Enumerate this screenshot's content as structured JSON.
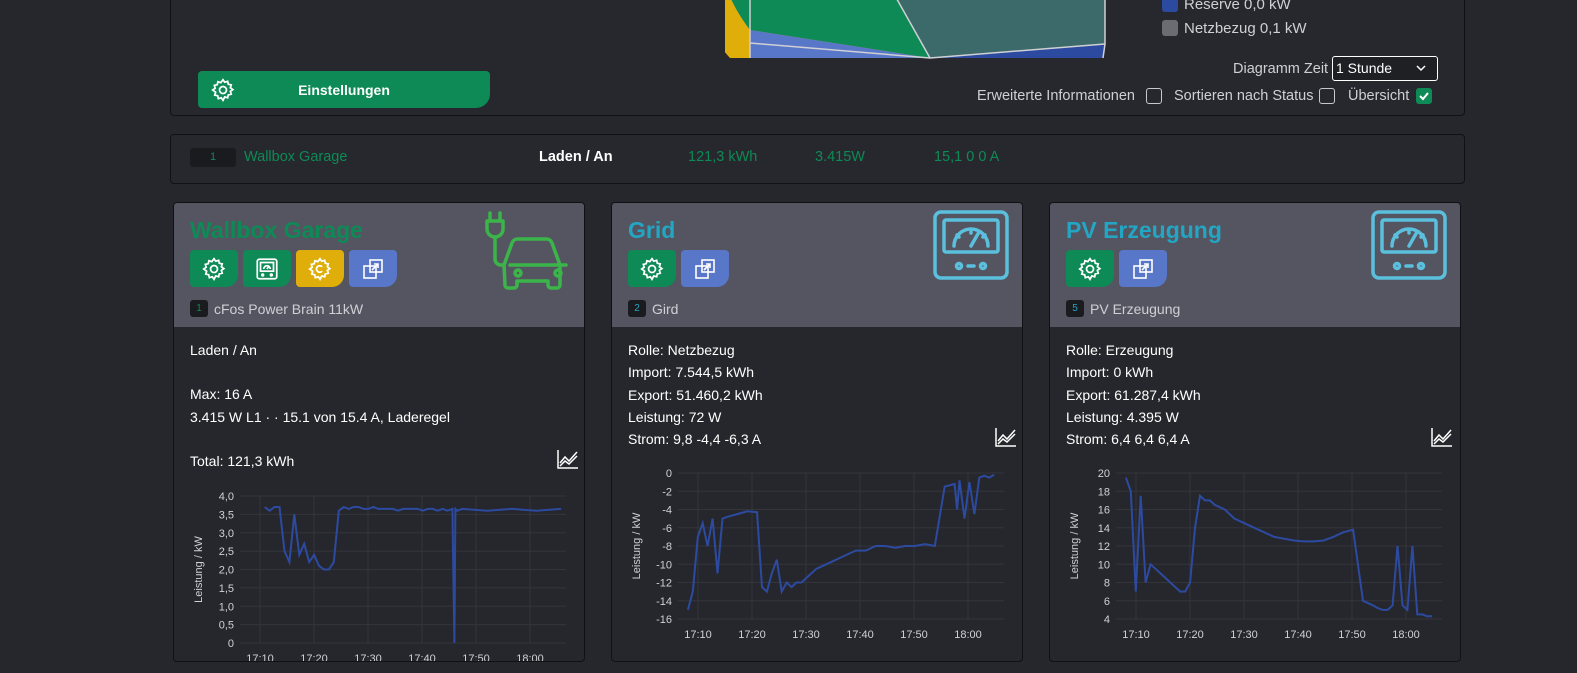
{
  "top": {
    "settings_label": "Einstellungen",
    "legend": [
      {
        "label": "Reserve 0,0 kW",
        "color": "#2c4aa0"
      },
      {
        "label": "Netzbezug 0,1 kW",
        "color": "#6b6c72"
      }
    ],
    "diagram_time_label": "Diagramm Zeit",
    "diagram_time_value": "1 Stunde",
    "extended_info_label": "Erweiterte Informationen",
    "sort_label": "Sortieren nach Status",
    "overview_label": "Übersicht",
    "extended_info_checked": false,
    "sort_checked": false,
    "overview_checked": true
  },
  "summary": {
    "index": "1",
    "name": "Wallbox Garage",
    "status": "Laden / An",
    "energy": "121,3 kWh",
    "power": "3.415W",
    "current": "15,1 0 0 A"
  },
  "cards": [
    {
      "title": "Wallbox Garage",
      "title_color": "#0d8a55",
      "device_index": "1",
      "device_name": "cFos Power Brain 11kW",
      "lines": [
        "Laden / An",
        "",
        "Max: 16 A",
        "3.415 W L1 · · 15.1 von 15.4 A, Laderegel",
        "",
        "Total: 121,3 kWh"
      ]
    },
    {
      "title": "Grid",
      "title_color": "#23a6c4",
      "device_index": "2",
      "device_name": "Gird",
      "lines": [
        "Rolle: Netzbezug",
        "Import: 7.544,5 kWh",
        "Export: 51.460,2 kWh",
        "Leistung: 72 W",
        "Strom: 9,8 -4,4 -6,3 A"
      ]
    },
    {
      "title": "PV Erzeugung",
      "title_color": "#23a6c4",
      "device_index": "5",
      "device_name": "PV Erzeugung",
      "lines": [
        "Rolle: Erzeugung",
        "Import: 0 kWh",
        "Export: 61.287,4 kWh",
        "Leistung: 4.395 W",
        "Strom: 6,4 6,4 6,4 A"
      ]
    }
  ],
  "chart_data": [
    {
      "type": "line",
      "ylabel": "Leistung / kW",
      "ylim": [
        0,
        4
      ],
      "yticks": [
        "4,0",
        "3,5",
        "3,0",
        "2,5",
        "2,0",
        "1,5",
        "1,0",
        "0,5",
        "0"
      ],
      "xticks": [
        "17:10",
        "17:20",
        "17:30",
        "17:40",
        "17:50",
        "18:00"
      ],
      "color": "#2c4aa0",
      "x": [
        5,
        6,
        7,
        8,
        9,
        10,
        11,
        12,
        13,
        14,
        15,
        16,
        17,
        18,
        19,
        20,
        21,
        22,
        23,
        24,
        25,
        26,
        27,
        28,
        29,
        30,
        31,
        32,
        33,
        34,
        35,
        36,
        37,
        38,
        39,
        40,
        41,
        42,
        43,
        43.4,
        43.6,
        44,
        45,
        50,
        55,
        60,
        65
      ],
      "y": [
        3.7,
        3.6,
        3.7,
        3.7,
        2.5,
        2.2,
        3.5,
        2.4,
        2.7,
        2.2,
        2.4,
        2.1,
        2.0,
        2.0,
        2.2,
        3.6,
        3.7,
        3.65,
        3.7,
        3.7,
        3.65,
        3.65,
        3.7,
        3.65,
        3.65,
        3.65,
        3.65,
        3.6,
        3.65,
        3.65,
        3.65,
        3.65,
        3.6,
        3.65,
        3.65,
        3.6,
        3.65,
        3.6,
        3.65,
        0.0,
        3.65,
        3.6,
        3.65,
        3.6,
        3.65,
        3.6,
        3.65
      ]
    },
    {
      "type": "line",
      "ylabel": "Leistung / kW",
      "ylim": [
        -16,
        0
      ],
      "yticks": [
        "0",
        "-2",
        "-4",
        "-6",
        "-8",
        "-10",
        "-12",
        "-14",
        "-16"
      ],
      "xticks": [
        "17:10",
        "17:20",
        "17:30",
        "17:40",
        "17:50",
        "18:00"
      ],
      "color": "#2c4aa0",
      "x": [
        2,
        3,
        4,
        5,
        6,
        7,
        8,
        9,
        10,
        12,
        14,
        16,
        17,
        18,
        19,
        20,
        21,
        22,
        23,
        24,
        25,
        26,
        27,
        28,
        30,
        32,
        34,
        36,
        38,
        40,
        42,
        44,
        46,
        48,
        50,
        52,
        54,
        56,
        56.5,
        57,
        58,
        59,
        60,
        61,
        62,
        63,
        64
      ],
      "y": [
        -15,
        -13,
        -7,
        -5.5,
        -8,
        -5,
        -11,
        -5,
        -4.8,
        -4.5,
        -4.2,
        -4.3,
        -12.5,
        -13,
        -11,
        -9.5,
        -13,
        -12,
        -12.5,
        -12,
        -12,
        -11.5,
        -11,
        -10.5,
        -10,
        -9.5,
        -9,
        -8.5,
        -8.5,
        -8,
        -8,
        -8.2,
        -8,
        -8,
        -7.8,
        -8,
        -1.5,
        -1.2,
        -4,
        -0.8,
        -5,
        -1,
        -4.5,
        -0.5,
        -0.3,
        -0.5,
        -0.2
      ]
    },
    {
      "type": "line",
      "ylabel": "Leistung / kW",
      "ylim": [
        4,
        20
      ],
      "yticks": [
        "20",
        "18",
        "16",
        "14",
        "12",
        "10",
        "8",
        "6",
        "4"
      ],
      "xticks": [
        "17:10",
        "17:20",
        "17:30",
        "17:40",
        "17:50",
        "18:00"
      ],
      "color": "#2c4aa0",
      "x": [
        2,
        3,
        4,
        5,
        6,
        7,
        8,
        9,
        10,
        11,
        12,
        13,
        14,
        15,
        16,
        17,
        18,
        19,
        20,
        22,
        24,
        26,
        28,
        30,
        32,
        34,
        36,
        38,
        40,
        42,
        44,
        46,
        48,
        50,
        52,
        53,
        54,
        55,
        56,
        57,
        58,
        59,
        60,
        61,
        62,
        63,
        64
      ],
      "y": [
        19.5,
        18,
        7,
        17.5,
        8,
        10,
        9.5,
        9,
        8.5,
        8,
        7.5,
        7,
        7,
        8,
        14,
        17.5,
        17,
        17,
        16.5,
        16,
        15,
        14.5,
        14,
        13.5,
        13,
        12.8,
        12.6,
        12.5,
        12.5,
        12.6,
        13,
        13.5,
        13.8,
        6,
        5.5,
        5.2,
        5,
        5,
        5.5,
        12,
        5.5,
        5,
        12,
        4.5,
        4.5,
        4.3,
        4.3
      ]
    }
  ]
}
